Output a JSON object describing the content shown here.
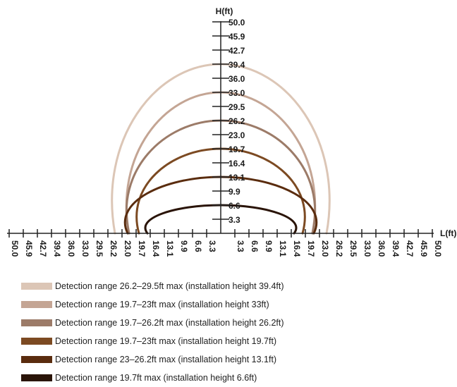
{
  "chart_data": {
    "type": "line",
    "xlabel": "L(ft)",
    "ylabel": "H(ft)",
    "x_tick_labels_left": [
      "50.0",
      "45.9",
      "42.7",
      "39.4",
      "36.0",
      "33.0",
      "29.5",
      "26.2",
      "23.0",
      "19.7",
      "16.4",
      "13.1",
      "9.9",
      "6.6",
      "3.3"
    ],
    "x_tick_labels_right": [
      "3.3",
      "6.6",
      "9.9",
      "13.1",
      "16.4",
      "19.7",
      "23.0",
      "26.2",
      "29.5",
      "33.0",
      "36.0",
      "39.4",
      "42.7",
      "45.9",
      "50.0"
    ],
    "y_tick_labels": [
      "3.3",
      "6.6",
      "9.9",
      "13.1",
      "16.4",
      "19.7",
      "23.0",
      "26.2",
      "29.5",
      "33.0",
      "36.0",
      "39.4",
      "42.7",
      "45.9",
      "50.0"
    ],
    "grid": false,
    "legend_position": "bottom",
    "series": [
      {
        "name": "Detection range 26.2–29.5ft max (installation height 39.4ft)",
        "color": "#dcc6b6",
        "installation_height_index": 12,
        "half_width_index": 7.5
      },
      {
        "name": "Detection range 19.7–23ft max (installation height 33ft)",
        "color": "#c4a594",
        "installation_height_index": 10,
        "half_width_index": 6.5
      },
      {
        "name": "Detection range 19.7–26.2ft max (installation height 26.2ft)",
        "color": "#9c7b68",
        "installation_height_index": 8,
        "half_width_index": 6.5
      },
      {
        "name": "Detection range 19.7–23ft max (installation height 19.7ft)",
        "color": "#7c4a22",
        "installation_height_index": 6,
        "half_width_index": 5.8
      },
      {
        "name": "Detection range 23–26.2ft max (installation height 13.1ft)",
        "color": "#5a2c0e",
        "installation_height_index": 4,
        "half_width_index": 6.6
      },
      {
        "name": "Detection range 19.7ft max (installation height 6.6ft)",
        "color": "#2a1408",
        "installation_height_index": 2,
        "half_width_index": 5.2
      }
    ]
  }
}
